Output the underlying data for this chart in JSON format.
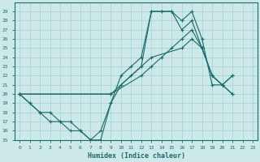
{
  "xlabel": "Humidex (Indice chaleur)",
  "bg_color": "#cce8e8",
  "grid_color": "#aad4d4",
  "line_color": "#1a6b6b",
  "xlim": [
    -0.5,
    23.5
  ],
  "ylim": [
    15,
    30
  ],
  "xticks": [
    0,
    1,
    2,
    3,
    4,
    5,
    6,
    7,
    8,
    9,
    10,
    11,
    12,
    13,
    14,
    15,
    16,
    17,
    18,
    19,
    20,
    21,
    22,
    23
  ],
  "yticks": [
    15,
    16,
    17,
    18,
    19,
    20,
    21,
    22,
    23,
    24,
    25,
    26,
    27,
    28,
    29
  ],
  "series": [
    {
      "x": [
        0,
        1,
        2,
        3,
        4,
        5,
        6,
        7,
        8,
        9,
        10,
        11,
        12,
        13,
        14,
        15,
        16,
        17,
        18,
        19,
        20,
        21
      ],
      "y": [
        20,
        19,
        18,
        17,
        17,
        16,
        16,
        15,
        16,
        19,
        22,
        23,
        24,
        29,
        29,
        29,
        28,
        29,
        26,
        21,
        21,
        20
      ],
      "has_markers": true
    },
    {
      "x": [
        0,
        1,
        2,
        3,
        4,
        5,
        6,
        7,
        8,
        9,
        10,
        11,
        12,
        13,
        14,
        15,
        16,
        17,
        18,
        19,
        20,
        21
      ],
      "y": [
        20,
        19,
        18,
        18,
        17,
        17,
        16,
        15,
        15,
        19,
        21,
        22,
        23,
        29,
        29,
        29,
        27,
        28,
        25,
        22,
        21,
        22
      ],
      "has_markers": true
    },
    {
      "x": [
        0,
        9,
        13,
        16,
        17,
        18,
        19,
        20,
        21
      ],
      "y": [
        20,
        20,
        24,
        25,
        26,
        25,
        22,
        21,
        22
      ],
      "has_markers": true
    },
    {
      "x": [
        0,
        9,
        12,
        13,
        14,
        15,
        16,
        17,
        18,
        19,
        20,
        21
      ],
      "y": [
        20,
        20,
        22,
        23,
        24,
        25,
        26,
        27,
        25,
        22,
        21,
        20
      ],
      "has_markers": true
    }
  ]
}
